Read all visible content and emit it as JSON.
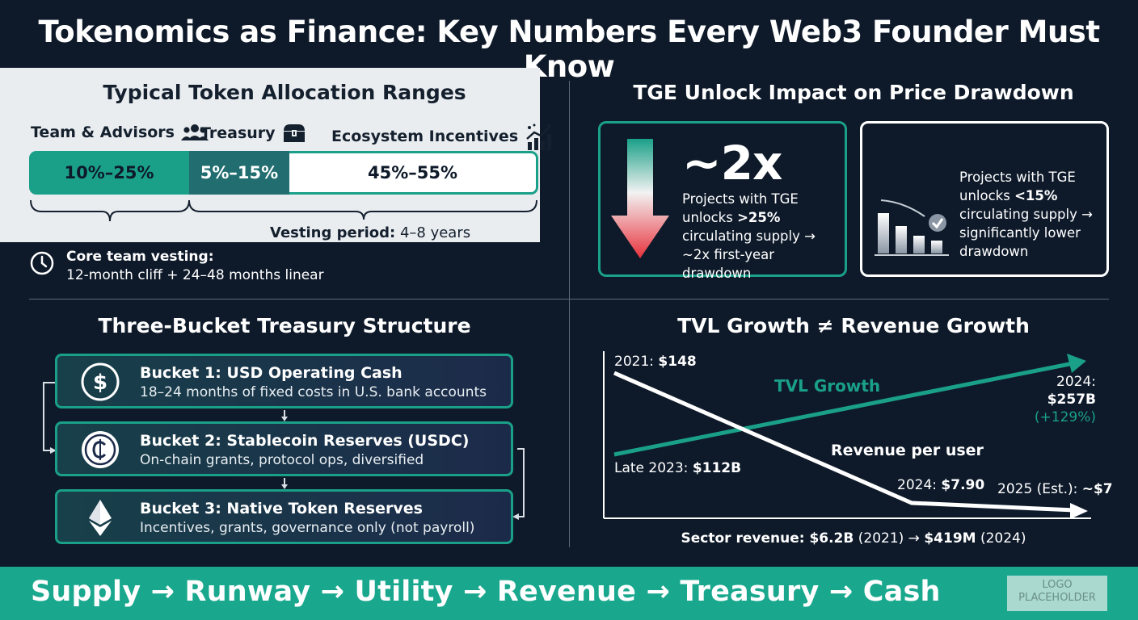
{
  "title": "Tokenomics as Finance: Key Numbers Every Web3 Founder Must Know",
  "allocation": {
    "title": "Typical Token Allocation Ranges",
    "categories": [
      {
        "label": "Team & Advisors",
        "range": "10%–25%",
        "icon": "people-icon"
      },
      {
        "label": "Treasury",
        "range": "5%–15%",
        "icon": "treasure-chest-icon"
      },
      {
        "label": "Ecosystem Incentives",
        "range": "45%–55%",
        "icon": "growth-chart-icon"
      }
    ],
    "vesting_period_label": "Vesting period:",
    "vesting_period_value": "4–8 years",
    "core_vesting_label": "Core team vesting:",
    "core_vesting_value": "12-month cliff + 24–48 months linear"
  },
  "tge": {
    "title": "TGE Unlock Impact on Price Drawdown",
    "big_value": "~2x",
    "left_text_1": "Projects with TGE unlocks ",
    "left_bold": ">25%",
    "left_text_2": " circulating supply → ~2x first-year drawdown",
    "right_text_1": "Projects with TGE unlocks ",
    "right_bold": "<15%",
    "right_text_2": " circulating supply → significantly lower drawdown"
  },
  "treasury": {
    "title": "Three-Bucket Treasury Structure",
    "buckets": [
      {
        "title": "Bucket 1: USD Operating Cash",
        "subtitle": "18–24 months of fixed costs in U.S. bank accounts",
        "icon": "dollar-coin-icon"
      },
      {
        "title": "Bucket 2: Stablecoin Reserves (USDC)",
        "subtitle": "On-chain grants, protocol ops, diversified",
        "icon": "usdc-coin-icon"
      },
      {
        "title": "Bucket 3: Native Token Reserves",
        "subtitle": "Incentives, grants, governance only (not payroll)",
        "icon": "ethereum-icon"
      }
    ]
  },
  "tvl": {
    "title": "TVL Growth ≠ Revenue Growth",
    "tvl_series_label": "TVL Growth",
    "revenue_series_label": "Revenue per user",
    "label_2021_prefix": "2021: ",
    "label_2021_value": "$148",
    "label_late2023_prefix": "Late 2023: ",
    "label_late2023_value": "$112B",
    "label_2024_tvl_prefix": "2024:",
    "label_2024_tvl_value": "$257B",
    "label_2024_tvl_change": "(+129%)",
    "label_2024_rev_prefix": "2024: ",
    "label_2024_rev_value": "$7.90",
    "label_2025_prefix": "2025 (Est.): ",
    "label_2025_value": "~$7",
    "sector_prefix": "Sector revenue: ",
    "sector_v1": "$6.2B",
    "sector_y1": " (2021) → ",
    "sector_v2": "$419M",
    "sector_y2": " (2024)"
  },
  "footer": {
    "text": "Supply → Runway → Utility → Revenue → Treasury → Cash",
    "logo": "LOGO PLACEHOLDER"
  },
  "colors": {
    "background": "#0e1a2a",
    "teal": "#1aa088",
    "dark_teal": "#216d6f",
    "footer": "#19a88e",
    "red": "#e8323c"
  }
}
